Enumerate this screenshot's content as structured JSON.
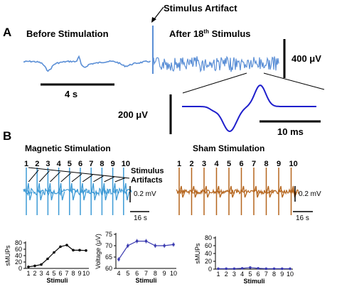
{
  "panel_a": {
    "label": "A",
    "before_label": "Before Stimulation",
    "after_label_prefix": "After 18",
    "after_label_sup": "th",
    "after_label_suffix": " Stimulus",
    "artifact_label": "Stimulus Artifact",
    "time_scale": "4 s",
    "amp_scale": "400 μV",
    "zoom_amp_scale": "200 μV",
    "zoom_time_scale": "10 ms",
    "trace_color": "#5b8fd6",
    "zoom_color": "#1f1fcc"
  },
  "panel_b": {
    "label": "B",
    "magnetic_title": "Magnetic Stimulation",
    "sham_title": "Sham Stimulation",
    "stim_numbers": [
      "1",
      "2",
      "3",
      "4",
      "5",
      "6",
      "7",
      "8",
      "9",
      "10"
    ],
    "artifact_label_line1": "Stimulus",
    "artifact_label_line2": "Artifacts",
    "amp_scale_mag": "0.2 mV",
    "amp_scale_sham": "0.2 mV",
    "time_scale_mag": "16 s",
    "time_scale_sham": "16 s",
    "magnetic_color": "#3d9ad6",
    "sham_color": "#b5651d"
  },
  "chart_data": [
    {
      "type": "line",
      "xlabel": "Stimuli",
      "ylabel": "sMUPs",
      "x": [
        1,
        2,
        3,
        4,
        5,
        6,
        7,
        8,
        9,
        10
      ],
      "values": [
        5,
        8,
        12,
        30,
        50,
        68,
        73,
        57,
        57,
        56
      ],
      "ylim": [
        0,
        80
      ],
      "yticks": [
        0,
        20,
        40,
        60,
        80
      ],
      "color": "#000000"
    },
    {
      "type": "line",
      "xlabel": "Stimuli",
      "ylabel": "Voltage (μV)",
      "x": [
        4,
        5,
        6,
        7,
        8,
        9,
        10
      ],
      "values": [
        64,
        70,
        72,
        72,
        70,
        70,
        70.5
      ],
      "ylim": [
        60,
        75
      ],
      "yticks": [
        60,
        65,
        70,
        75
      ],
      "color": "#3b3bb0"
    },
    {
      "type": "line",
      "xlabel": "Stimuli",
      "ylabel": "sMUPs",
      "x": [
        1,
        2,
        3,
        4,
        5,
        6,
        7,
        8,
        9,
        10
      ],
      "values": [
        1,
        1,
        1,
        2,
        4,
        2,
        1,
        1,
        1,
        1
      ],
      "ylim": [
        0,
        80
      ],
      "yticks": [
        0,
        20,
        40,
        60,
        80
      ],
      "color": "#3b3bb0"
    }
  ]
}
